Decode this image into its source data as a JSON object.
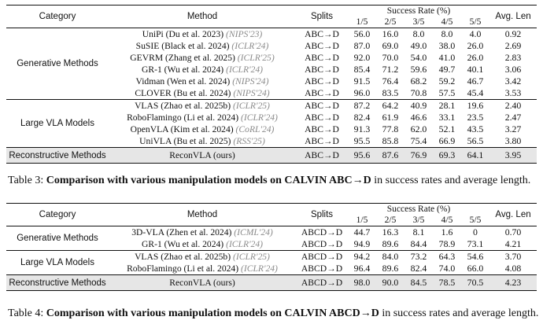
{
  "table3": {
    "header": {
      "category": "Category",
      "method": "Method",
      "splits": "Splits",
      "success_rate": "Success Rate (%)",
      "cols": [
        "1/5",
        "2/5",
        "3/5",
        "4/5",
        "5/5"
      ],
      "avg_len": "Avg. Len"
    },
    "groups": [
      {
        "category": "Generative Methods",
        "rows": [
          {
            "method": "UniPi (Du et al. 2023)",
            "venue": "(NIPS'23)",
            "split": "ABC→D",
            "values": [
              "56.0",
              "16.0",
              "8.0",
              "8.0",
              "4.0"
            ],
            "avg": "0.92"
          },
          {
            "method": "SuSIE (Black et al. 2024)",
            "venue": "(ICLR'24)",
            "split": "ABC→D",
            "values": [
              "87.0",
              "69.0",
              "49.0",
              "38.0",
              "26.0"
            ],
            "avg": "2.69"
          },
          {
            "method": "GEVRM (Zhang et al. 2025)",
            "venue": "(ICLR'25)",
            "split": "ABC→D",
            "values": [
              "92.0",
              "70.0",
              "54.0",
              "41.0",
              "26.0"
            ],
            "avg": "2.83"
          },
          {
            "method": "GR-1 (Wu et al. 2024)",
            "venue": "(ICLR'24)",
            "split": "ABC→D",
            "values": [
              "85.4",
              "71.2",
              "59.6",
              "49.7",
              "40.1"
            ],
            "avg": "3.06"
          },
          {
            "method": "Vidman (Wen et al. 2024)",
            "venue": "(NIPS'24)",
            "split": "ABC→D",
            "values": [
              "91.5",
              "76.4",
              "68.2",
              "59.2",
              "46.7"
            ],
            "avg": "3.42"
          },
          {
            "method": "CLOVER (Bu et al. 2024)",
            "venue": "(NIPS'24)",
            "split": "ABC→D",
            "values": [
              "96.0",
              "83.5",
              "70.8",
              "57.5",
              "45.4"
            ],
            "avg": "3.53"
          }
        ]
      },
      {
        "category": "Large VLA Models",
        "rows": [
          {
            "method": "VLAS (Zhao et al. 2025b)",
            "venue": "(ICLR'25)",
            "split": "ABC→D",
            "values": [
              "87.2",
              "64.2",
              "40.9",
              "28.1",
              "19.6"
            ],
            "avg": "2.40"
          },
          {
            "method": "RoboFlamingo (Li et al. 2024)",
            "venue": "(ICLR'24)",
            "split": "ABC→D",
            "values": [
              "82.4",
              "61.9",
              "46.6",
              "33.1",
              "23.5"
            ],
            "avg": "2.47"
          },
          {
            "method": "OpenVLA (Kim et al. 2024)",
            "venue": "(CoRL'24)",
            "split": "ABC→D",
            "values": [
              "91.3",
              "77.8",
              "62.0",
              "52.1",
              "43.5"
            ],
            "avg": "3.27"
          },
          {
            "method": "UniVLA (Bu et al. 2025)",
            "venue": "(RSS'25)",
            "split": "ABC→D",
            "values": [
              "95.5",
              "85.8",
              "75.4",
              "66.9",
              "56.5"
            ],
            "avg": "3.80"
          }
        ]
      }
    ],
    "ours": {
      "category": "Reconstructive Methods",
      "method": "ReconVLA (ours)",
      "split": "ABC→D",
      "values": [
        "95.6",
        "87.6",
        "76.9",
        "69.3",
        "64.1"
      ],
      "avg": "3.95"
    },
    "caption": {
      "label": "Table 3:",
      "bold": "Comparison with various manipulation models on CALVIN ABC→D",
      "rest": " in success rates and average length."
    }
  },
  "table4": {
    "header": {
      "category": "Category",
      "method": "Method",
      "splits": "Splits",
      "success_rate": "Success Rate (%)",
      "cols": [
        "1/5",
        "2/5",
        "3/5",
        "4/5",
        "5/5"
      ],
      "avg_len": "Avg. Len"
    },
    "groups": [
      {
        "category": "Generative Methods",
        "rows": [
          {
            "method": "3D-VLA (Zhen et al. 2024)",
            "venue": "(ICML'24)",
            "split": "ABCD→D",
            "values": [
              "44.7",
              "16.3",
              "8.1",
              "1.6",
              "0"
            ],
            "avg": "0.70"
          },
          {
            "method": "GR-1 (Wu et al. 2024)",
            "venue": "(ICLR'24)",
            "split": "ABCD→D",
            "values": [
              "94.9",
              "89.6",
              "84.4",
              "78.9",
              "73.1"
            ],
            "avg": "4.21"
          }
        ]
      },
      {
        "category": "Large VLA Models",
        "rows": [
          {
            "method": "VLAS (Zhao et al. 2025b)",
            "venue": "(ICLR'25)",
            "split": "ABCD→D",
            "values": [
              "94.2",
              "84.0",
              "73.2",
              "64.3",
              "54.6"
            ],
            "avg": "3.70"
          },
          {
            "method": "RoboFlamingo (Li et al. 2024)",
            "venue": "(ICLR'24)",
            "split": "ABCD→D",
            "values": [
              "96.4",
              "89.6",
              "82.4",
              "74.0",
              "66.0"
            ],
            "avg": "4.08"
          }
        ]
      }
    ],
    "ours": {
      "category": "Reconstructive Methods",
      "method": "ReconVLA (ours)",
      "split": "ABCD→D",
      "values": [
        "98.0",
        "90.0",
        "84.5",
        "78.5",
        "70.5"
      ],
      "avg": "4.23"
    },
    "caption": {
      "label": "Table 4:",
      "bold": "Comparison with various manipulation models on CALVIN ABCD→D",
      "rest": " in success rates and average length."
    }
  }
}
